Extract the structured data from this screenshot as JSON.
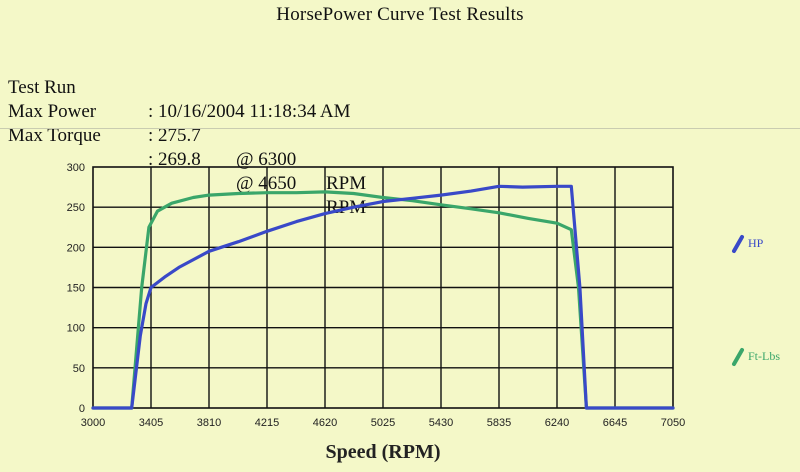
{
  "header": {
    "title": "HorsePower Curve Test Results",
    "rows": [
      {
        "key": "Test Run",
        "value": ": 10/16/2004 11:18:34 AM",
        "at": "",
        "unit": ""
      },
      {
        "key": "Max Power",
        "value": ": 275.7",
        "at": "@ 6300",
        "unit": "RPM"
      },
      {
        "key": "Max Torque",
        "value": ": 269.8",
        "at": "@ 4650",
        "unit": "RPM"
      }
    ]
  },
  "colors": {
    "background": "#f4f8c8",
    "hp": "#3949c8",
    "torque": "#3aa66a",
    "grid": "#111111"
  },
  "chart_data": {
    "type": "line",
    "title": "",
    "xlabel": "Speed (RPM)",
    "ylabel": "",
    "xlim": [
      3000,
      7050
    ],
    "ylim": [
      0,
      300
    ],
    "x_ticks": [
      3000,
      3405,
      3810,
      4215,
      4620,
      5025,
      5430,
      5835,
      6240,
      6645,
      7050
    ],
    "y_ticks": [
      0,
      50,
      100,
      150,
      200,
      250,
      300
    ],
    "grid": true,
    "legend": "right",
    "series": [
      {
        "name": "HP",
        "color": "#3949c8",
        "points": [
          [
            3000,
            0
          ],
          [
            3270,
            0
          ],
          [
            3330,
            90
          ],
          [
            3370,
            130
          ],
          [
            3405,
            150
          ],
          [
            3500,
            163
          ],
          [
            3600,
            175
          ],
          [
            3810,
            195
          ],
          [
            4015,
            207
          ],
          [
            4215,
            220
          ],
          [
            4420,
            232
          ],
          [
            4620,
            242
          ],
          [
            4820,
            250
          ],
          [
            5025,
            257
          ],
          [
            5230,
            261
          ],
          [
            5430,
            265
          ],
          [
            5640,
            270
          ],
          [
            5835,
            276
          ],
          [
            6000,
            275
          ],
          [
            6240,
            276
          ],
          [
            6340,
            276
          ],
          [
            6400,
            150
          ],
          [
            6445,
            0
          ],
          [
            6645,
            0
          ],
          [
            7050,
            0
          ]
        ]
      },
      {
        "name": "Ft-Lbs",
        "color": "#3aa66a",
        "points": [
          [
            3000,
            0
          ],
          [
            3270,
            0
          ],
          [
            3340,
            150
          ],
          [
            3390,
            225
          ],
          [
            3450,
            245
          ],
          [
            3550,
            255
          ],
          [
            3700,
            262
          ],
          [
            3810,
            265
          ],
          [
            4015,
            267
          ],
          [
            4215,
            268
          ],
          [
            4420,
            268
          ],
          [
            4620,
            269
          ],
          [
            4820,
            267
          ],
          [
            5025,
            262
          ],
          [
            5230,
            258
          ],
          [
            5430,
            253
          ],
          [
            5640,
            248
          ],
          [
            5835,
            243
          ],
          [
            6040,
            236
          ],
          [
            6240,
            230
          ],
          [
            6340,
            222
          ],
          [
            6390,
            150
          ],
          [
            6445,
            0
          ],
          [
            6645,
            0
          ],
          [
            7050,
            0
          ]
        ]
      }
    ]
  }
}
